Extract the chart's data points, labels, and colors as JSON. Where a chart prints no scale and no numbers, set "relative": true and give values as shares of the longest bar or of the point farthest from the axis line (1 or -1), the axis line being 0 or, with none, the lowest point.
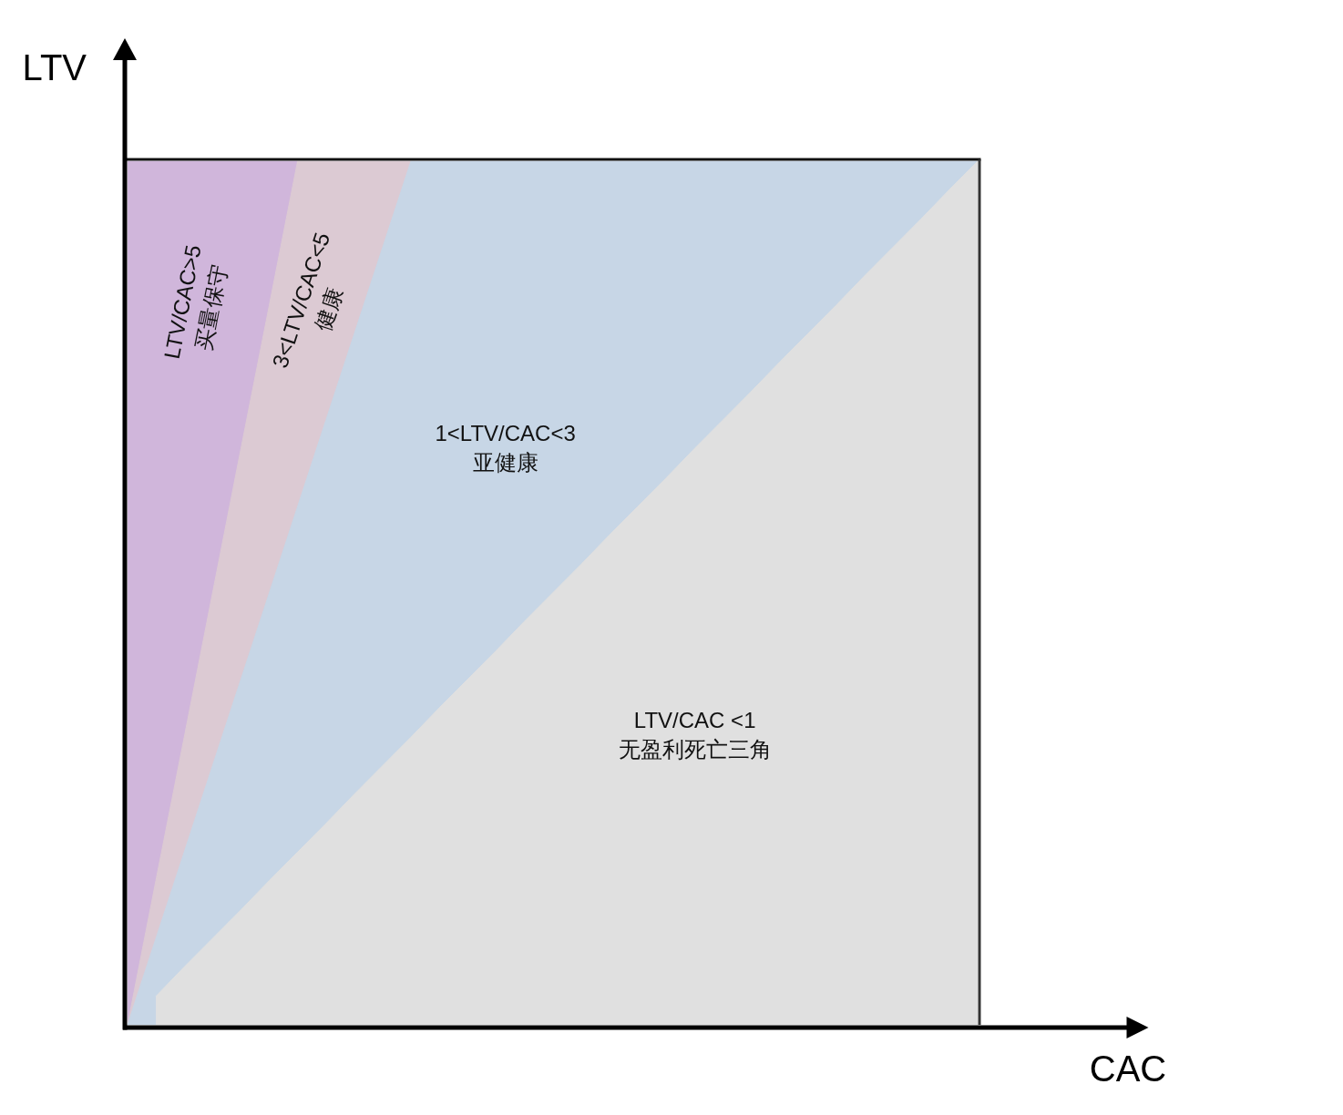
{
  "chart_data": {
    "type": "area",
    "relative": true,
    "marker": "none",
    "xlabel": "CAC",
    "ylabel": "LTV",
    "categories": [
      null,
      null,
      null,
      null,
      null,
      null,
      null,
      null,
      null,
      null,
      null,
      null,
      null,
      null,
      null,
      null,
      null,
      null,
      null,
      null,
      null,
      null,
      null,
      null,
      null,
      null,
      null,
      null,
      null,
      null,
      null
    ],
    "series": [
      {
        "name": "LTV/CAC>5\n买量保守",
        "color": "#d0b6db",
        "values": [
          1,
          1,
          1,
          1,
          1,
          1,
          1,
          null,
          null,
          null,
          null,
          null,
          null,
          null,
          null,
          null,
          null,
          null,
          null,
          null,
          null,
          null,
          null,
          null,
          null,
          null,
          null,
          null,
          null,
          null,
          null
        ]
      },
      {
        "name": "3<LTV/CAC<5\n健康",
        "color": "#dccad3",
        "values": [
          0,
          0.167,
          0.333,
          0.5,
          0.667,
          0.833,
          1,
          1,
          1,
          1,
          1,
          null,
          null,
          null,
          null,
          null,
          null,
          null,
          null,
          null,
          null,
          null,
          null,
          null,
          null,
          null,
          null,
          null,
          null,
          null,
          null
        ]
      },
      {
        "name": "1<LTV/CAC<3\n亚健康",
        "color": "#c7d6e6",
        "values": [
          0,
          0.1,
          0.2,
          0.3,
          0.4,
          0.5,
          0.6,
          0.7,
          0.8,
          0.9,
          1,
          1,
          1,
          1,
          1,
          1,
          1,
          1,
          1,
          1,
          1,
          1,
          1,
          1,
          1,
          1,
          1,
          1,
          1,
          1,
          1
        ]
      },
      {
        "name": "LTV/CAC <1\n无盈利死亡三角",
        "color": "#e0e0e0",
        "values": [
          null,
          0.033,
          0.067,
          0.1,
          0.133,
          0.167,
          0.2,
          0.233,
          0.267,
          0.3,
          0.333,
          0.367,
          0.4,
          0.433,
          0.467,
          0.5,
          0.533,
          0.567,
          0.6,
          0.633,
          0.667,
          0.7,
          0.733,
          0.767,
          0.8,
          0.833,
          0.867,
          0.9,
          0.933,
          0.967,
          1
        ]
      }
    ]
  }
}
